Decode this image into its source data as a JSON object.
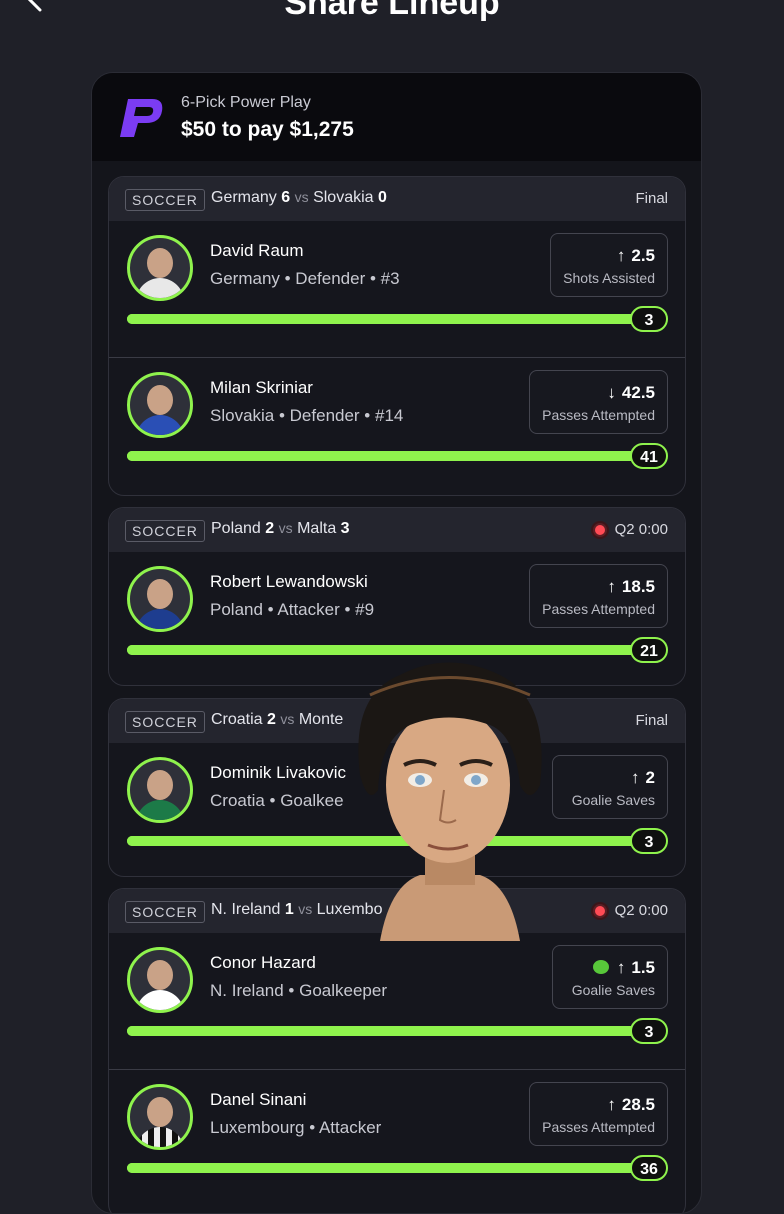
{
  "header": {
    "title": "Share Lineup"
  },
  "entry": {
    "play_type": "6-Pick Power Play",
    "payout": "$50 to pay $1,275"
  },
  "colors": {
    "accent": "#8ff34d",
    "live": "#ff4b55",
    "brand": "#7b3cf3"
  },
  "games": [
    {
      "sport": "SOCCER",
      "team1": "Germany",
      "score1": "6",
      "vs": "vs",
      "team2": "Slovakia",
      "score2": "0",
      "status": "Final",
      "live": false,
      "picks": [
        {
          "name": "David Raum",
          "meta": "Germany • Defender • #3",
          "direction": "up",
          "arrow": "↑",
          "line": "2.5",
          "category": "Shots Assisted",
          "result": "3",
          "progress": 1.0
        },
        {
          "name": "Milan Skriniar",
          "meta": "Slovakia • Defender • #14",
          "direction": "down",
          "arrow": "↓",
          "line": "42.5",
          "category": "Passes Attempted",
          "result": "41",
          "progress": 1.0
        }
      ]
    },
    {
      "sport": "SOCCER",
      "team1": "Poland",
      "score1": "2",
      "vs": "vs",
      "team2": "Malta",
      "score2": "3",
      "status": "Q2 0:00",
      "live": true,
      "picks": [
        {
          "name": "Robert Lewandowski",
          "meta": "Poland • Attacker • #9",
          "direction": "up",
          "arrow": "↑",
          "line": "18.5",
          "category": "Passes Attempted",
          "result": "21",
          "progress": 1.0
        }
      ]
    },
    {
      "sport": "SOCCER",
      "team1": "Croatia",
      "score1": "2",
      "vs": "vs",
      "team2": "Monte",
      "score2": "",
      "status": "Final",
      "live": false,
      "picks": [
        {
          "name": "Dominik Livakovic",
          "meta": "Croatia • Goalkee",
          "direction": "up",
          "arrow": "↑",
          "line": "2",
          "category": "Goalie Saves",
          "result": "3",
          "progress": 1.0
        }
      ]
    },
    {
      "sport": "SOCCER",
      "team1": "N. Ireland",
      "score1": "1",
      "vs": "vs",
      "team2": "Luxembo",
      "score2": "",
      "status": "Q2 0:00",
      "live": true,
      "picks": [
        {
          "name": "Conor Hazard",
          "meta": "N. Ireland • Goalkeeper",
          "direction": "up",
          "arrow": "↑",
          "line": "1.5",
          "category": "Goalie Saves",
          "result": "3",
          "progress": 1.0,
          "demon": true
        },
        {
          "name": "Danel Sinani",
          "meta": "Luxembourg • Attacker",
          "direction": "up",
          "arrow": "↑",
          "line": "28.5",
          "category": "Passes Attempted",
          "result": "36",
          "progress": 1.0
        }
      ]
    }
  ]
}
